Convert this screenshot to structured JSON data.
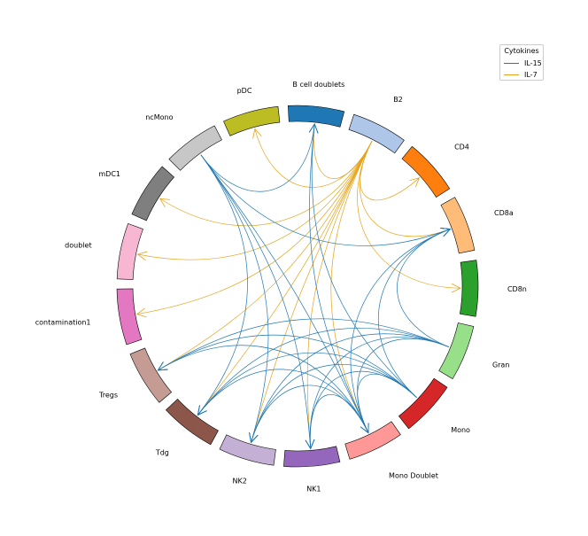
{
  "legend": {
    "title": "Cytokines",
    "items": [
      {
        "label": "IL-15",
        "color": "#1f77b4"
      },
      {
        "label": "IL-7",
        "color": "#e6a31a"
      }
    ]
  },
  "segments": [
    {
      "name": "B cell doublets",
      "color": "#1f77b4"
    },
    {
      "name": "B2",
      "color": "#aec7e8"
    },
    {
      "name": "CD4",
      "color": "#ff7f0e"
    },
    {
      "name": "CD8a",
      "color": "#ffbb78"
    },
    {
      "name": "CD8n",
      "color": "#2ca02c"
    },
    {
      "name": "Gran",
      "color": "#98df8a"
    },
    {
      "name": "Mono",
      "color": "#d62728"
    },
    {
      "name": "Mono Doublet",
      "color": "#ff9896"
    },
    {
      "name": "NK1",
      "color": "#9467bd"
    },
    {
      "name": "NK2",
      "color": "#c5b0d5"
    },
    {
      "name": "Tdg",
      "color": "#8c564b"
    },
    {
      "name": "Tregs",
      "color": "#c49c94"
    },
    {
      "name": "contamination1",
      "color": "#e377c2"
    },
    {
      "name": "doublet",
      "color": "#f7b6d2"
    },
    {
      "name": "mDC1",
      "color": "#7f7f7f"
    },
    {
      "name": "ncMono",
      "color": "#c7c7c7"
    },
    {
      "name": "pDC",
      "color": "#bcbd22"
    }
  ],
  "links": [
    {
      "from": "B2",
      "to": "pDC",
      "cytokine": "IL-7"
    },
    {
      "from": "B2",
      "to": "B cell doublets",
      "cytokine": "IL-7"
    },
    {
      "from": "B2",
      "to": "CD4",
      "cytokine": "IL-7"
    },
    {
      "from": "B2",
      "to": "CD8a",
      "cytokine": "IL-7"
    },
    {
      "from": "B2",
      "to": "CD8n",
      "cytokine": "IL-7"
    },
    {
      "from": "B2",
      "to": "Mono Doublet",
      "cytokine": "IL-7"
    },
    {
      "from": "B2",
      "to": "NK1",
      "cytokine": "IL-7"
    },
    {
      "from": "B2",
      "to": "NK2",
      "cytokine": "IL-7"
    },
    {
      "from": "B2",
      "to": "Tdg",
      "cytokine": "IL-7"
    },
    {
      "from": "B2",
      "to": "Tregs",
      "cytokine": "IL-7"
    },
    {
      "from": "B2",
      "to": "contamination1",
      "cytokine": "IL-7"
    },
    {
      "from": "B2",
      "to": "doublet",
      "cytokine": "IL-7"
    },
    {
      "from": "B2",
      "to": "mDC1",
      "cytokine": "IL-7"
    },
    {
      "from": "ncMono",
      "to": "B cell doublets",
      "cytokine": "IL-15"
    },
    {
      "from": "ncMono",
      "to": "CD8a",
      "cytokine": "IL-15"
    },
    {
      "from": "ncMono",
      "to": "Mono Doublet",
      "cytokine": "IL-15"
    },
    {
      "from": "ncMono",
      "to": "NK1",
      "cytokine": "IL-15"
    },
    {
      "from": "ncMono",
      "to": "NK2",
      "cytokine": "IL-15"
    },
    {
      "from": "ncMono",
      "to": "Tdg",
      "cytokine": "IL-15"
    },
    {
      "from": "Mono",
      "to": "B cell doublets",
      "cytokine": "IL-15"
    },
    {
      "from": "Mono",
      "to": "CD8a",
      "cytokine": "IL-15"
    },
    {
      "from": "Mono",
      "to": "NK1",
      "cytokine": "IL-15"
    },
    {
      "from": "Mono",
      "to": "Tdg",
      "cytokine": "IL-15"
    },
    {
      "from": "Mono",
      "to": "Tregs",
      "cytokine": "IL-15"
    },
    {
      "from": "Mono",
      "to": "NK2",
      "cytokine": "IL-15"
    },
    {
      "from": "Mono",
      "to": "Mono Doublet",
      "cytokine": "IL-15"
    },
    {
      "from": "Gran",
      "to": "Tregs",
      "cytokine": "IL-15"
    },
    {
      "from": "Gran",
      "to": "Tdg",
      "cytokine": "IL-15"
    },
    {
      "from": "Gran",
      "to": "NK2",
      "cytokine": "IL-15"
    },
    {
      "from": "Gran",
      "to": "NK1",
      "cytokine": "IL-15"
    },
    {
      "from": "Gran",
      "to": "Mono Doublet",
      "cytokine": "IL-15"
    },
    {
      "from": "Gran",
      "to": "CD8a",
      "cytokine": "IL-15"
    },
    {
      "from": "Mono Doublet",
      "to": "B cell doublets",
      "cytokine": "IL-15"
    },
    {
      "from": "Mono Doublet",
      "to": "CD8a",
      "cytokine": "IL-15"
    },
    {
      "from": "Mono Doublet",
      "to": "Tregs",
      "cytokine": "IL-15"
    },
    {
      "from": "Mono Doublet",
      "to": "NK1",
      "cytokine": "IL-15"
    },
    {
      "from": "Mono Doublet",
      "to": "Tdg",
      "cytokine": "IL-15"
    },
    {
      "from": "Mono Doublet",
      "to": "NK2",
      "cytokine": "IL-15"
    }
  ]
}
